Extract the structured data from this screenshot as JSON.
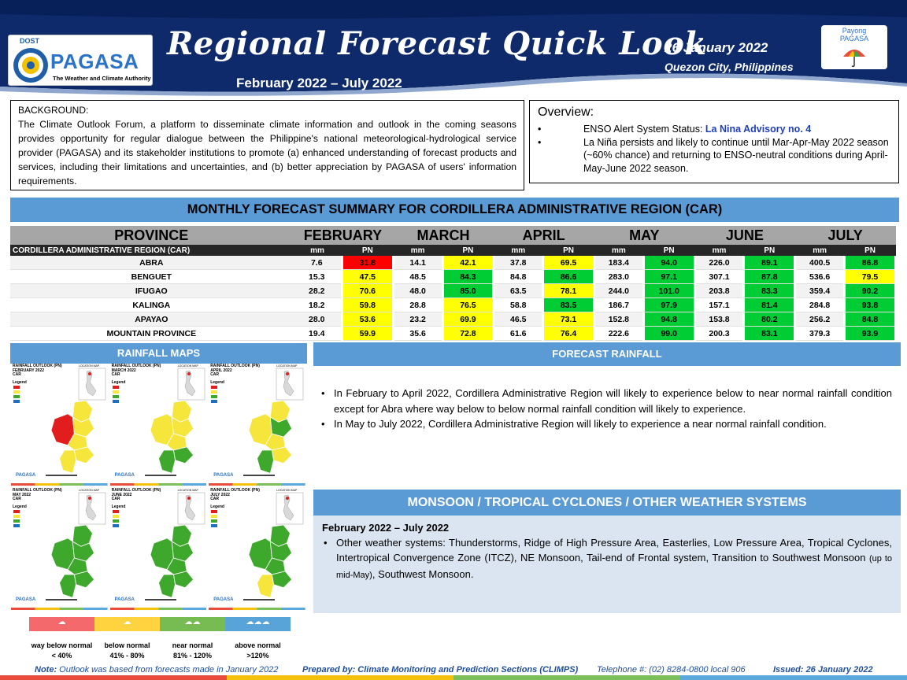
{
  "header": {
    "logo_dost": "DOST",
    "logo_pagasa": "PAGASA",
    "logo_tagline": "The Weather and Climate Authority",
    "title": "Regional Forecast Quick Look",
    "period": "February 2022 – July 2022",
    "date": "26 January 2022",
    "place": "Quezon City, Philippines",
    "payong_line1": "Payong",
    "payong_line2": "PAGASA"
  },
  "background": {
    "heading": "BACKGROUND:",
    "text": "The Climate Outlook Forum, a platform to disseminate climate information and outlook in the coming seasons provides opportunity for regular dialogue between the Philippine's national meteorological-hydrological service provider (PAGASA) and its stakeholder institutions to promote (a) enhanced understanding of forecast products and services, including their limitations and uncertainties, and (b) better appreciation by PAGASA of users' information requirements."
  },
  "overview": {
    "heading": "Overview:",
    "enso_label": "ENSO Alert System Status: ",
    "enso_value": "La Nina Advisory no. 4",
    "bullet2": "La Niña persists and likely to continue until Mar-Apr-May 2022 season (~60% chance) and returning to ENSO-neutral conditions during April-May-June 2022 season."
  },
  "monthly": {
    "banner": "MONTHLY FORECAST SUMMARY FOR CORDILLERA ADMINISTRATIVE REGION (CAR)",
    "province_header": "PROVINCE",
    "months": [
      "FEBRUARY",
      "MARCH",
      "APRIL",
      "MAY",
      "JUNE",
      "JULY"
    ],
    "region_label": "CORDILLERA ADMINISTRATIVE REGION (CAR)",
    "mm_label": "mm",
    "pn_label": "PN",
    "rows": [
      {
        "province": "ABRA",
        "values": [
          [
            "7.6",
            "31.8"
          ],
          [
            "14.1",
            "42.1"
          ],
          [
            "37.8",
            "69.5"
          ],
          [
            "183.4",
            "94.0"
          ],
          [
            "226.0",
            "89.1"
          ],
          [
            "400.5",
            "86.8"
          ]
        ]
      },
      {
        "province": "BENGUET",
        "values": [
          [
            "15.3",
            "47.5"
          ],
          [
            "48.5",
            "84.3"
          ],
          [
            "84.8",
            "86.6"
          ],
          [
            "283.0",
            "97.1"
          ],
          [
            "307.1",
            "87.8"
          ],
          [
            "536.6",
            "79.5"
          ]
        ]
      },
      {
        "province": "IFUGAO",
        "values": [
          [
            "28.2",
            "70.6"
          ],
          [
            "48.0",
            "85.0"
          ],
          [
            "63.5",
            "78.1"
          ],
          [
            "244.0",
            "101.0"
          ],
          [
            "203.8",
            "83.3"
          ],
          [
            "359.4",
            "90.2"
          ]
        ]
      },
      {
        "province": "KALINGA",
        "values": [
          [
            "18.2",
            "59.8"
          ],
          [
            "28.8",
            "76.5"
          ],
          [
            "58.8",
            "83.5"
          ],
          [
            "186.7",
            "97.9"
          ],
          [
            "157.1",
            "81.4"
          ],
          [
            "284.8",
            "93.8"
          ]
        ]
      },
      {
        "province": "APAYAO",
        "values": [
          [
            "28.0",
            "53.6"
          ],
          [
            "23.2",
            "69.9"
          ],
          [
            "46.5",
            "73.1"
          ],
          [
            "152.8",
            "94.8"
          ],
          [
            "153.8",
            "80.2"
          ],
          [
            "256.2",
            "84.8"
          ]
        ]
      },
      {
        "province": "MOUNTAIN PROVINCE",
        "values": [
          [
            "19.4",
            "59.9"
          ],
          [
            "35.6",
            "72.8"
          ],
          [
            "61.6",
            "76.4"
          ],
          [
            "222.6",
            "99.0"
          ],
          [
            "200.3",
            "83.1"
          ],
          [
            "379.3",
            "93.9"
          ]
        ]
      }
    ],
    "colors": {
      "way_below": "#ff0000",
      "below": "#ffff00",
      "near": "#00cc33",
      "above": "#0070c0"
    }
  },
  "rainfall_maps": {
    "banner": "RAINFALL MAPS",
    "maps": [
      {
        "title": "RAINFALL OUTLOOK (PN)",
        "month": "FEBRUARY 2022",
        "region": "CAR"
      },
      {
        "title": "RAINFALL OUTLOOK (PN)",
        "month": "MARCH 2022",
        "region": "CAR"
      },
      {
        "title": "RAINFALL OUTLOOK (PN)",
        "month": "APRIL 2022",
        "region": "CAR"
      },
      {
        "title": "RAINFALL OUTLOOK (PN)",
        "month": "MAY 2022",
        "region": "CAR"
      },
      {
        "title": "RAINFALL OUTLOOK (PN)",
        "month": "JUNE 2022",
        "region": "CAR"
      },
      {
        "title": "RAINFALL OUTLOOK (PN)",
        "month": "JULY 2022",
        "region": "CAR"
      }
    ],
    "legend_title": "Legend",
    "location_label": "LOCATION MAP",
    "map_logo": "PAGASA"
  },
  "forecast_rainfall": {
    "banner": "FORECAST RAINFALL",
    "bullets": [
      "In February to April 2022, Cordillera Administrative Region will likely to experience below to near normal rainfall condition except for Abra where way below to below normal rainfall condition will likely to experience.",
      "In May to July 2022, Cordillera Administrative Region will likely to experience a near normal rainfall condition."
    ]
  },
  "monsoon": {
    "banner": "MONSOON / TROPICAL CYCLONES / OTHER WEATHER SYSTEMS",
    "period": "February 2022 – July 2022",
    "text_main": "Other weather systems: Thunderstorms,  Ridge of High Pressure Area,  Easterlies, Low Pressure Area, Tropical Cyclones, Intertropical Convergence Zone (ITCZ), NE Monsoon, Tail-end of Frontal system, Transition to Southwest Monsoon ",
    "text_small": "(up to mid-May)",
    "text_end": ", Southwest Monsoon."
  },
  "legend": {
    "items": [
      {
        "label": "way below normal",
        "range": "< 40%",
        "color": "#f4696b"
      },
      {
        "label": "below normal",
        "range": "41% - 80%",
        "color": "#ffd33f"
      },
      {
        "label": "near normal",
        "range": "81% - 120%",
        "color": "#77bc53"
      },
      {
        "label": "above normal",
        "range": ">120%",
        "color": "#58a4d8"
      }
    ]
  },
  "footer": {
    "note_label": "Note:",
    "note_text": " Outlook was based from forecasts made in January 2022",
    "prepared": "Prepared by: Climate Monitoring and Prediction Sections (CLIMPS)",
    "telephone": "Telephone #: (02) 8284-0800 local 906",
    "issued": "Issued: 26 January 2022"
  }
}
